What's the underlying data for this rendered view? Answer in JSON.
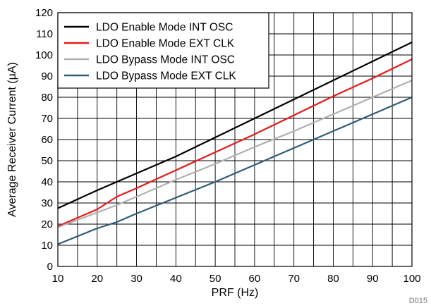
{
  "chart_data": {
    "type": "line",
    "xlabel": "PRF (Hz)",
    "ylabel": "Average Receiver Current (µA)",
    "xlim": [
      10,
      100
    ],
    "ylim": [
      0,
      120
    ],
    "xticks": [
      10,
      20,
      30,
      40,
      50,
      60,
      70,
      80,
      90,
      100
    ],
    "yticks": [
      0,
      10,
      20,
      30,
      40,
      50,
      60,
      70,
      80,
      90,
      100,
      110,
      120
    ],
    "grid": true,
    "legend_position": "top-left",
    "series": [
      {
        "name": "LDO Enable Mode INT OSC",
        "color": "#000000",
        "x": [
          10,
          20,
          25,
          30,
          40,
          50,
          60,
          70,
          80,
          90,
          100
        ],
        "y": [
          27.5,
          36,
          40,
          44,
          52,
          61,
          70,
          79,
          88,
          97,
          106
        ]
      },
      {
        "name": "LDO Enable Mode EXT CLK",
        "color": "#e8191b",
        "x": [
          10,
          20,
          25,
          30,
          40,
          50,
          60,
          70,
          80,
          90,
          100
        ],
        "y": [
          19,
          27,
          33,
          37,
          45.5,
          54,
          62.5,
          71.5,
          80.5,
          89,
          98
        ]
      },
      {
        "name": "LDO Bypass Mode INT OSC",
        "color": "#b0b0b0",
        "x": [
          10,
          20,
          25,
          30,
          40,
          50,
          60,
          70,
          80,
          90,
          100
        ],
        "y": [
          18.5,
          25.5,
          29,
          33,
          41,
          48.5,
          56.5,
          64,
          72,
          80,
          88
        ]
      },
      {
        "name": "LDO Bypass Mode EXT CLK",
        "color": "#2f5b78",
        "x": [
          10,
          20,
          25,
          30,
          40,
          50,
          60,
          70,
          80,
          90,
          100
        ],
        "y": [
          10.5,
          18,
          21,
          25,
          32.5,
          40,
          48,
          56,
          64,
          72,
          80
        ]
      }
    ],
    "footnote": "D015"
  }
}
